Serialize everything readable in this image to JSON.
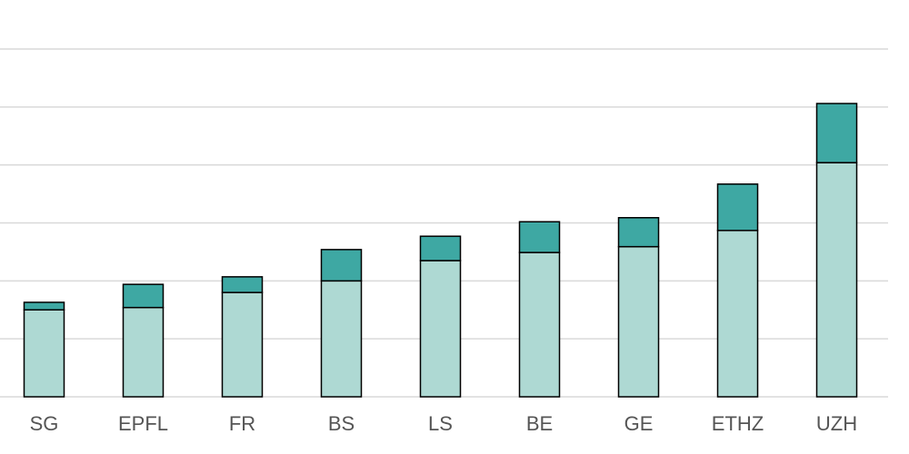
{
  "chart_data": {
    "type": "stacked_bar",
    "categories": [
      "SG",
      "EPFL",
      "FR",
      "BS",
      "LS",
      "BE",
      "GE",
      "ETHZ",
      "UZH"
    ],
    "series": [
      {
        "color": "#aed9d3",
        "values": [
          1.5,
          1.54,
          1.8,
          2.0,
          2.35,
          2.49,
          2.59,
          2.87,
          4.04
        ]
      },
      {
        "color": "#3ea8a3",
        "values": [
          0.13,
          0.4,
          0.27,
          0.54,
          0.42,
          0.53,
          0.5,
          0.8,
          1.02
        ]
      }
    ],
    "ylim": [
      0,
      6
    ],
    "yticks": [
      0,
      1,
      2,
      3,
      4,
      5,
      6
    ],
    "grid": true,
    "tick_labels": false
  }
}
